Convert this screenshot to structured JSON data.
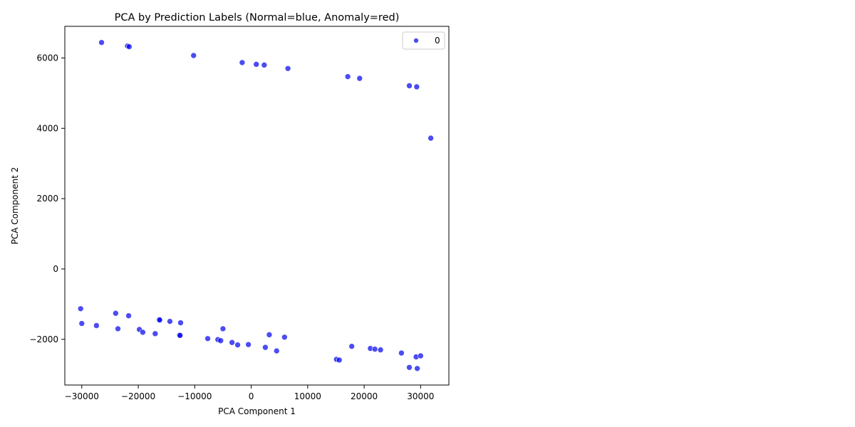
{
  "chart_data": {
    "type": "scatter",
    "title": "PCA by Prediction Labels (Normal=blue, Anomaly=red)",
    "xlabel": "PCA Component 1",
    "ylabel": "PCA Component 2",
    "xlim": [
      -33000,
      35000
    ],
    "ylim": [
      -3300,
      6900
    ],
    "xticks": [
      -30000,
      -20000,
      -10000,
      0,
      10000,
      20000,
      30000
    ],
    "xtick_labels": [
      "−30000",
      "−20000",
      "−10000",
      "0",
      "10000",
      "20000",
      "30000"
    ],
    "yticks": [
      -2000,
      0,
      2000,
      4000,
      6000
    ],
    "ytick_labels": [
      "−2000",
      "0",
      "2000",
      "4000",
      "6000"
    ],
    "grid": false,
    "legend": {
      "position": "top-right",
      "entries": [
        {
          "label": "0",
          "color": "#0000ee"
        }
      ]
    },
    "series": [
      {
        "name": "0",
        "color": "#0000ee",
        "points": [
          [
            -26500,
            6440
          ],
          [
            -21900,
            6340
          ],
          [
            -21600,
            6320
          ],
          [
            -10200,
            6070
          ],
          [
            -1600,
            5870
          ],
          [
            900,
            5820
          ],
          [
            2300,
            5800
          ],
          [
            6500,
            5700
          ],
          [
            17100,
            5470
          ],
          [
            19200,
            5420
          ],
          [
            28000,
            5210
          ],
          [
            29300,
            5180
          ],
          [
            31800,
            3720
          ],
          [
            -30200,
            -1130
          ],
          [
            -30000,
            -1550
          ],
          [
            -27400,
            -1610
          ],
          [
            -24000,
            -1260
          ],
          [
            -23600,
            -1700
          ],
          [
            -21700,
            -1330
          ],
          [
            -19800,
            -1720
          ],
          [
            -19200,
            -1800
          ],
          [
            -17000,
            -1840
          ],
          [
            -16300,
            -1440
          ],
          [
            -16200,
            -1450
          ],
          [
            -14400,
            -1490
          ],
          [
            -12500,
            -1530
          ],
          [
            -12700,
            -1880
          ],
          [
            -12600,
            -1890
          ],
          [
            -7700,
            -1980
          ],
          [
            -5900,
            -2010
          ],
          [
            -5400,
            -2040
          ],
          [
            -5000,
            -1700
          ],
          [
            -3400,
            -2090
          ],
          [
            -2400,
            -2160
          ],
          [
            -500,
            -2150
          ],
          [
            2500,
            -2230
          ],
          [
            3200,
            -1870
          ],
          [
            4500,
            -2330
          ],
          [
            5900,
            -1940
          ],
          [
            15100,
            -2570
          ],
          [
            15600,
            -2590
          ],
          [
            17800,
            -2200
          ],
          [
            21100,
            -2260
          ],
          [
            21900,
            -2280
          ],
          [
            22900,
            -2300
          ],
          [
            26600,
            -2390
          ],
          [
            28000,
            -2800
          ],
          [
            29200,
            -2500
          ],
          [
            29400,
            -2830
          ],
          [
            30000,
            -2470
          ]
        ]
      }
    ]
  }
}
